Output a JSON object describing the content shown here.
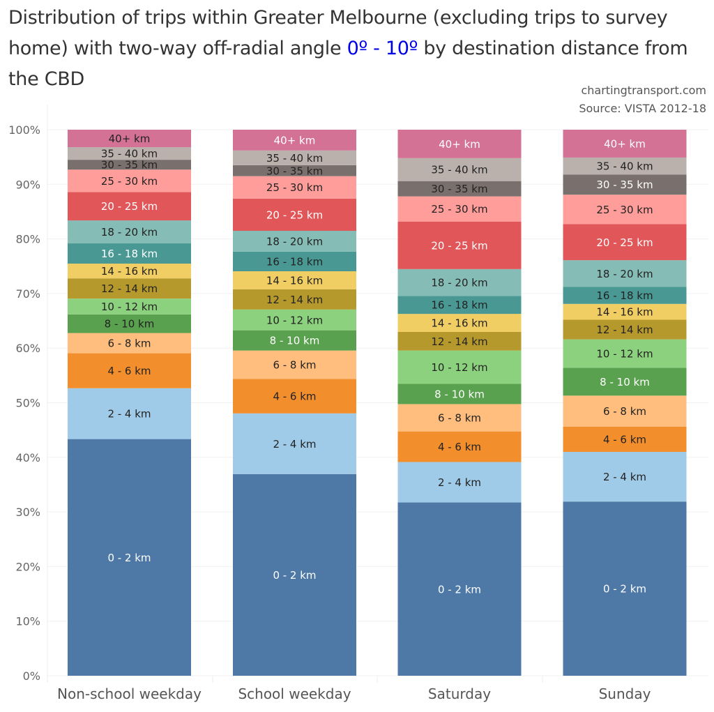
{
  "title": {
    "prefix": "Distribution of trips within Greater Melbourne (excluding trips to survey home) with two-way off-radial angle ",
    "highlight": "0º - 10º",
    "suffix": " by destination distance from the CBD",
    "highlight_color": "#0000e6"
  },
  "credits": {
    "site": "chartingtransport.com",
    "source": "Source: VISTA 2012-18"
  },
  "chart_data": {
    "type": "bar",
    "stacked": "100%",
    "title": "Distribution of trips within Greater Melbourne (excluding trips to survey home) with two-way off-radial angle 0º - 10º by destination distance from the CBD",
    "xlabel": "",
    "ylabel": "",
    "ylim": [
      0,
      100
    ],
    "yticks": [
      "0%",
      "10%",
      "20%",
      "30%",
      "40%",
      "50%",
      "60%",
      "70%",
      "80%",
      "90%",
      "100%"
    ],
    "grid": true,
    "legend": "none (labels inside segments)",
    "categories": [
      "Non-school weekday",
      "School weekday",
      "Saturday",
      "Sunday"
    ],
    "series": [
      {
        "name": "0 - 2 km",
        "color": "#4e79a7",
        "values": [
          43.3,
          36.9,
          31.7,
          31.9
        ],
        "label_colors": [
          "#ffffff",
          "#ffffff",
          "#ffffff",
          "#ffffff"
        ]
      },
      {
        "name": "2 - 4 km",
        "color": "#a0cbe8",
        "values": [
          9.3,
          11.1,
          7.4,
          9.1
        ],
        "label_colors": [
          "#222222",
          "#222222",
          "#222222",
          "#222222"
        ]
      },
      {
        "name": "4 - 6 km",
        "color": "#f28e2b",
        "values": [
          6.4,
          6.3,
          5.6,
          4.6
        ],
        "label_colors": [
          "#222222",
          "#222222",
          "#222222",
          "#222222"
        ]
      },
      {
        "name": "6 - 8 km",
        "color": "#ffbe7d",
        "values": [
          3.7,
          5.2,
          5.0,
          5.7
        ],
        "label_colors": [
          "#222222",
          "#222222",
          "#222222",
          "#222222"
        ]
      },
      {
        "name": "8 - 10 km",
        "color": "#59a14f",
        "values": [
          3.4,
          3.7,
          3.7,
          5.1
        ],
        "label_colors": [
          "#222222",
          "#ffffff",
          "#ffffff",
          "#ffffff"
        ]
      },
      {
        "name": "10 - 12 km",
        "color": "#8cd17d",
        "values": [
          2.9,
          3.8,
          6.1,
          5.2
        ],
        "label_colors": [
          "#222222",
          "#222222",
          "#222222",
          "#222222"
        ]
      },
      {
        "name": "12 - 14 km",
        "color": "#b6992d",
        "values": [
          3.7,
          3.7,
          3.4,
          3.6
        ],
        "label_colors": [
          "#222222",
          "#222222",
          "#222222",
          "#222222"
        ]
      },
      {
        "name": "14 - 16 km",
        "color": "#f1ce63",
        "values": [
          2.7,
          3.3,
          3.3,
          2.9
        ],
        "label_colors": [
          "#222222",
          "#222222",
          "#222222",
          "#222222"
        ]
      },
      {
        "name": "16 - 18 km",
        "color": "#499894",
        "values": [
          3.7,
          3.6,
          3.3,
          3.1
        ],
        "label_colors": [
          "#ffffff",
          "#222222",
          "#222222",
          "#222222"
        ]
      },
      {
        "name": "18 - 20 km",
        "color": "#86bcb6",
        "values": [
          4.2,
          3.8,
          4.9,
          4.9
        ],
        "label_colors": [
          "#222222",
          "#222222",
          "#222222",
          "#222222"
        ]
      },
      {
        "name": "20 - 25 km",
        "color": "#e15759",
        "values": [
          5.2,
          5.9,
          8.7,
          6.6
        ],
        "label_colors": [
          "#ffffff",
          "#ffffff",
          "#ffffff",
          "#ffffff"
        ]
      },
      {
        "name": "25 - 30 km",
        "color": "#ff9d9a",
        "values": [
          4.1,
          4.1,
          4.6,
          5.4
        ],
        "label_colors": [
          "#222222",
          "#222222",
          "#222222",
          "#222222"
        ]
      },
      {
        "name": "30 - 35 km",
        "color": "#79706e",
        "values": [
          1.8,
          2.0,
          2.8,
          3.7
        ],
        "label_colors": [
          "#222222",
          "#222222",
          "#222222",
          "#ffffff"
        ]
      },
      {
        "name": "35 - 40 km",
        "color": "#bab0ac",
        "values": [
          2.3,
          2.7,
          4.2,
          3.1
        ],
        "label_colors": [
          "#222222",
          "#222222",
          "#222222",
          "#222222"
        ]
      },
      {
        "name": "40+ km",
        "color": "#d37295",
        "values": [
          3.2,
          3.8,
          5.2,
          5.1
        ],
        "label_colors": [
          "#222222",
          "#ffffff",
          "#ffffff",
          "#ffffff"
        ]
      }
    ]
  }
}
